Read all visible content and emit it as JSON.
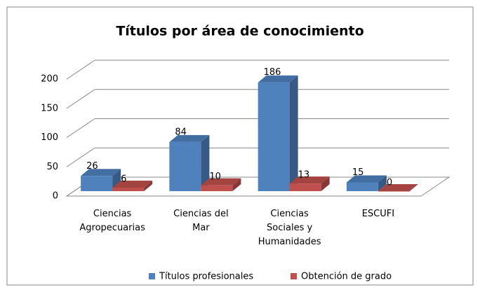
{
  "chart_data": {
    "type": "bar3d",
    "title": "Títulos por área de conocimiento",
    "categories": [
      "Ciencias Agropecuarias",
      "Ciencias del Mar",
      "Ciencias Sociales y Humanidades",
      "ESCUFI"
    ],
    "series": [
      {
        "name": "Títulos profesionales",
        "color": "#4f81bd",
        "values": [
          26,
          84,
          186,
          15
        ]
      },
      {
        "name": "Obtención de grado",
        "color": "#c0504d",
        "values": [
          6,
          10,
          13,
          0
        ]
      }
    ],
    "ylim": [
      0,
      200
    ],
    "yticks": [
      0,
      50,
      100,
      150,
      200
    ],
    "grid": true,
    "legend": "bottom"
  }
}
